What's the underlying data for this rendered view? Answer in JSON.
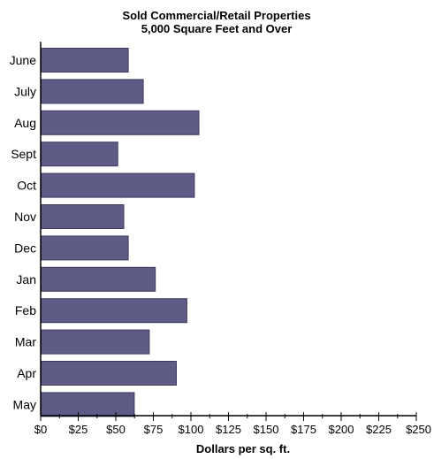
{
  "colors": {
    "bar": "#5e5b86",
    "bar_edge": "#3d3a5e",
    "axis": "#000000",
    "background": "#ffffff"
  },
  "chart_data": {
    "type": "bar",
    "orientation": "horizontal",
    "title": "Sold Commercial/Retail Properties",
    "subtitle": "5,000 Square Feet and Over",
    "xlabel": "Dollars per sq. ft.",
    "ylabel": "",
    "categories": [
      "June",
      "July",
      "Aug",
      "Sept",
      "Oct",
      "Nov",
      "Dec",
      "Jan",
      "Feb",
      "Mar",
      "Apr",
      "May"
    ],
    "values": [
      58,
      68,
      105,
      51,
      102,
      55,
      58,
      76,
      97,
      72,
      90,
      62
    ],
    "xlim": [
      0,
      250
    ],
    "xticks": [
      0,
      25,
      50,
      75,
      100,
      125,
      150,
      175,
      200,
      225,
      250
    ],
    "xtick_labels": [
      "$0",
      "$25",
      "$50",
      "$75",
      "$100",
      "$125",
      "$150",
      "$175",
      "$200",
      "$225",
      "$250"
    ],
    "grid": false,
    "legend": "none"
  }
}
